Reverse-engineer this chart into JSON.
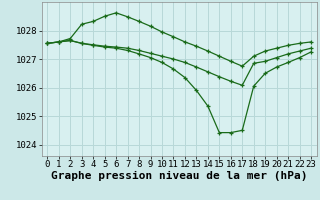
{
  "background_color": "#cce8e8",
  "plot_bg_color": "#d8f0f0",
  "grid_color": "#b8d8d8",
  "line_color": "#1a6b1a",
  "title": "Graphe pression niveau de la mer (hPa)",
  "ylabel_ticks": [
    1024,
    1025,
    1026,
    1027,
    1028
  ],
  "xlim": [
    -0.5,
    23.5
  ],
  "ylim": [
    1023.6,
    1029.0
  ],
  "lines": [
    {
      "x": [
        0,
        1,
        2,
        3,
        4,
        5,
        6,
        7,
        8,
        9,
        10,
        11,
        12,
        13,
        14,
        15,
        16,
        17,
        18,
        19,
        20,
        21,
        22,
        23
      ],
      "y": [
        1027.55,
        1027.6,
        1027.72,
        1028.22,
        1028.32,
        1028.5,
        1028.62,
        1028.48,
        1028.32,
        1028.15,
        1027.95,
        1027.78,
        1027.6,
        1027.45,
        1027.28,
        1027.1,
        1026.92,
        1026.75,
        1027.1,
        1027.28,
        1027.38,
        1027.48,
        1027.55,
        1027.6
      ]
    },
    {
      "x": [
        0,
        1,
        2,
        3,
        4,
        5,
        6,
        7,
        8,
        9,
        10,
        11,
        12,
        13,
        14,
        15,
        16,
        17,
        18,
        19,
        20,
        21,
        22,
        23
      ],
      "y": [
        1027.55,
        1027.6,
        1027.65,
        1027.55,
        1027.5,
        1027.45,
        1027.42,
        1027.38,
        1027.3,
        1027.2,
        1027.1,
        1027.0,
        1026.88,
        1026.72,
        1026.55,
        1026.38,
        1026.22,
        1026.08,
        1026.85,
        1026.92,
        1027.05,
        1027.18,
        1027.28,
        1027.38
      ]
    },
    {
      "x": [
        0,
        1,
        2,
        3,
        4,
        5,
        6,
        7,
        8,
        9,
        10,
        11,
        12,
        13,
        14,
        15,
        16,
        17,
        18,
        19,
        20,
        21,
        22,
        23
      ],
      "y": [
        1027.55,
        1027.6,
        1027.65,
        1027.55,
        1027.48,
        1027.42,
        1027.38,
        1027.3,
        1027.18,
        1027.05,
        1026.88,
        1026.65,
        1026.35,
        1025.9,
        1025.35,
        1024.42,
        1024.42,
        1024.5,
        1026.05,
        1026.5,
        1026.72,
        1026.88,
        1027.05,
        1027.25
      ]
    }
  ],
  "xtick_labels": [
    "0",
    "1",
    "2",
    "3",
    "4",
    "5",
    "6",
    "7",
    "8",
    "9",
    "10",
    "11",
    "12",
    "13",
    "14",
    "15",
    "16",
    "17",
    "18",
    "19",
    "20",
    "21",
    "22",
    "23"
  ],
  "title_fontsize": 8,
  "tick_fontsize": 6.5
}
